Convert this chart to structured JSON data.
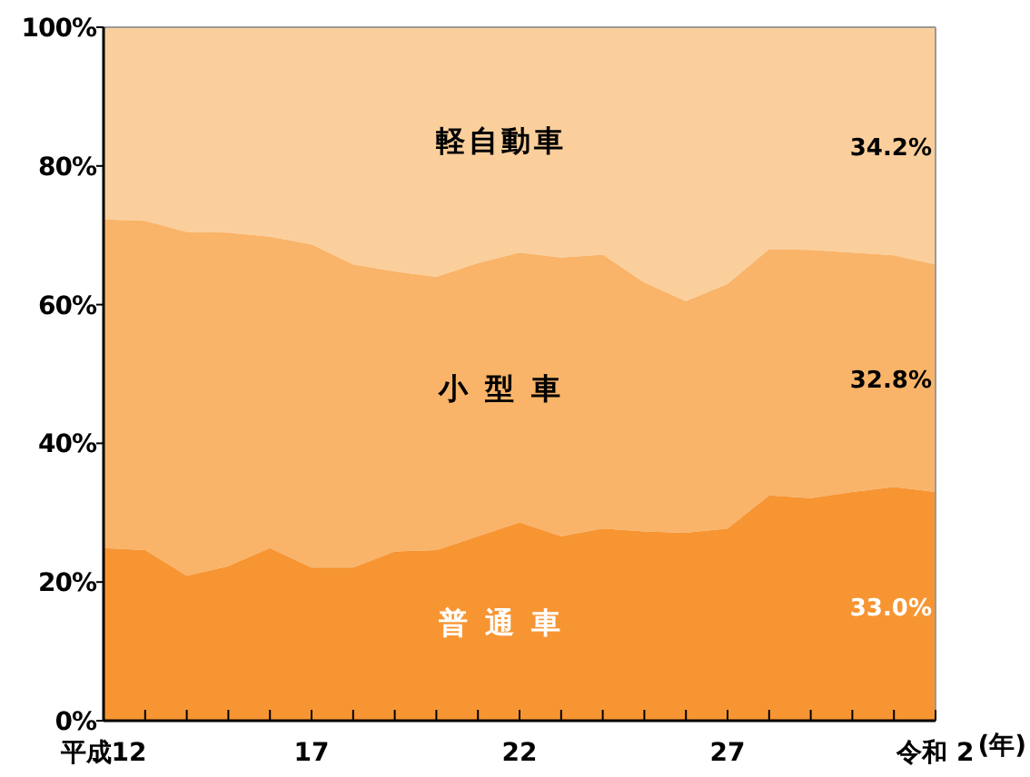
{
  "chart_data": {
    "type": "area",
    "stacked": true,
    "xlabel": "(年)",
    "categories": [
      "平成12",
      null,
      null,
      null,
      null,
      "17",
      null,
      null,
      null,
      null,
      "22",
      null,
      null,
      null,
      null,
      "27",
      null,
      null,
      null,
      null,
      "令和 2"
    ],
    "ylim": [
      0,
      100
    ],
    "yticks": [
      {
        "value": 0,
        "label": "0%"
      },
      {
        "value": 20,
        "label": "20%"
      },
      {
        "value": 40,
        "label": "40%"
      },
      {
        "value": 60,
        "label": "60%"
      },
      {
        "value": 80,
        "label": "80%"
      },
      {
        "value": 100,
        "label": "100%"
      }
    ],
    "series": [
      {
        "name": "普 通 車",
        "color": "#f79533",
        "values": [
          24.9,
          24.6,
          20.9,
          22.3,
          24.9,
          22.1,
          22.1,
          24.4,
          24.6,
          26.6,
          28.6,
          26.6,
          27.7,
          27.3,
          27.1,
          27.7,
          32.5,
          32.1,
          33.0,
          33.7,
          33.0
        ]
      },
      {
        "name": "小 型 車",
        "color": "#f9b469",
        "values": [
          47.4,
          47.5,
          49.6,
          48.1,
          44.9,
          46.6,
          43.7,
          40.4,
          39.4,
          39.4,
          38.9,
          40.2,
          39.5,
          35.9,
          33.4,
          35.3,
          35.5,
          35.8,
          34.5,
          33.4,
          32.8
        ]
      },
      {
        "name": "軽自動車",
        "color": "#fbcf9c",
        "values": [
          27.7,
          27.9,
          29.5,
          29.6,
          30.2,
          31.3,
          34.2,
          35.2,
          36.0,
          34.0,
          32.5,
          33.2,
          32.8,
          36.8,
          39.5,
          37.0,
          32.0,
          32.1,
          32.5,
          32.9,
          34.2
        ]
      }
    ],
    "annotations": [
      {
        "text": "34.2%",
        "x": "令和 2",
        "y": 82.9
      },
      {
        "text": "32.8%",
        "x": "令和 2",
        "y": 49.4
      },
      {
        "text": "33.0%",
        "x": "令和 2",
        "y": 16.5
      }
    ]
  }
}
